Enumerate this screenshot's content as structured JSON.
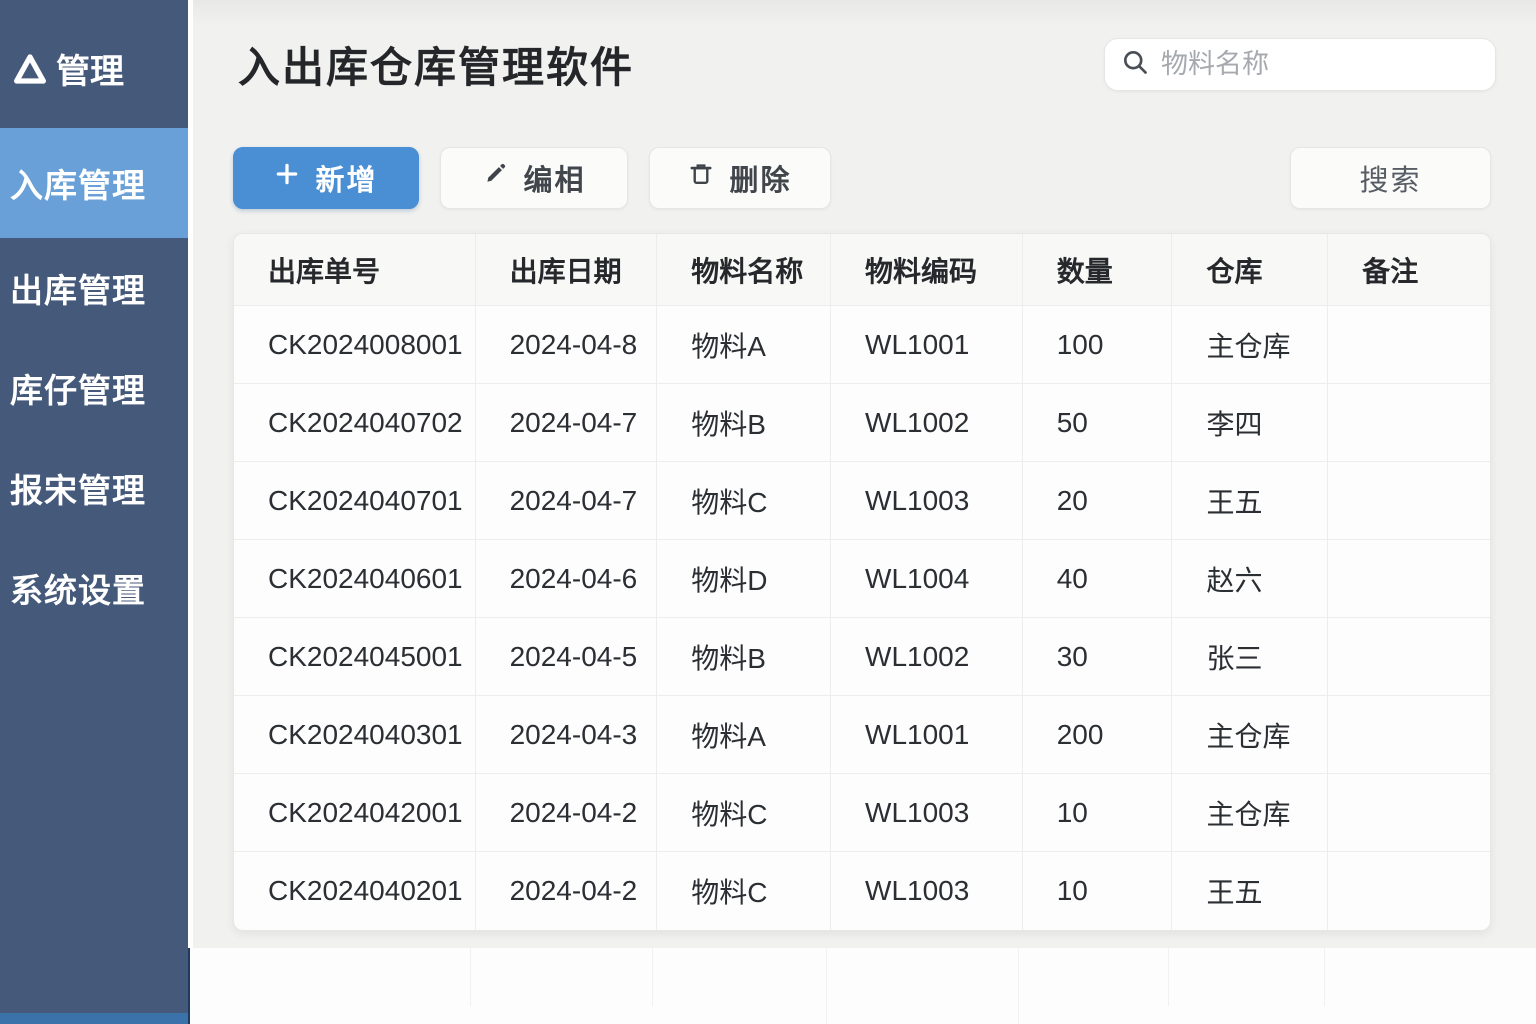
{
  "brand": {
    "label": "管理",
    "logo_icon": "triangle-logo-icon"
  },
  "sidebar": {
    "items": [
      {
        "label": "入库管理",
        "active": true
      },
      {
        "label": "出库管理",
        "active": false
      },
      {
        "label": "库仔管理",
        "active": false
      },
      {
        "label": "报宋管理",
        "active": false
      },
      {
        "label": "系统设置",
        "active": false
      }
    ]
  },
  "header": {
    "title": "入出库仓库管理软件",
    "search_placeholder": "物料名称",
    "search_icon": "magnifier-icon"
  },
  "toolbar": {
    "add_label": "新增",
    "add_icon": "plus-icon",
    "edit_label": "编相",
    "edit_icon": "pencil-icon",
    "delete_label": "删除",
    "delete_icon": "trash-icon",
    "search_label": "搜索"
  },
  "colors": {
    "sidebar": "#45597A",
    "sidebar_active": "#69A0D7",
    "accent_button": "#4A8FD3",
    "main_background": "#F1F1EF"
  },
  "table": {
    "columns": [
      "出库单号",
      "出库日期",
      "物料名称",
      "物料编码",
      "数量",
      "仓库",
      "备注"
    ],
    "rows": [
      [
        "CK2024008001",
        "2024-04-8",
        "物料A",
        "WL1001",
        "100",
        "主仓库",
        ""
      ],
      [
        "CK2024040702",
        "2024-04-7",
        "物料B",
        "WL1002",
        "50",
        "李四",
        ""
      ],
      [
        "CK2024040701",
        "2024-04-7",
        "物料C",
        "WL1003",
        "20",
        "王五",
        ""
      ],
      [
        "CK2024040601",
        "2024-04-6",
        "物料D",
        "WL1004",
        "40",
        "赵六",
        ""
      ],
      [
        "CK2024045001",
        "2024-04-5",
        "物料B",
        "WL1002",
        "30",
        "张三",
        ""
      ],
      [
        "CK2024040301",
        "2024-04-3",
        "物料A",
        "WL1001",
        "200",
        "主仓库",
        ""
      ],
      [
        "CK2024042001",
        "2024-04-2",
        "物料C",
        "WL1003",
        "10",
        "主仓库",
        ""
      ],
      [
        "CK2024040201",
        "2024-04-2",
        "物料C",
        "WL1003",
        "10",
        "王五",
        ""
      ]
    ]
  }
}
